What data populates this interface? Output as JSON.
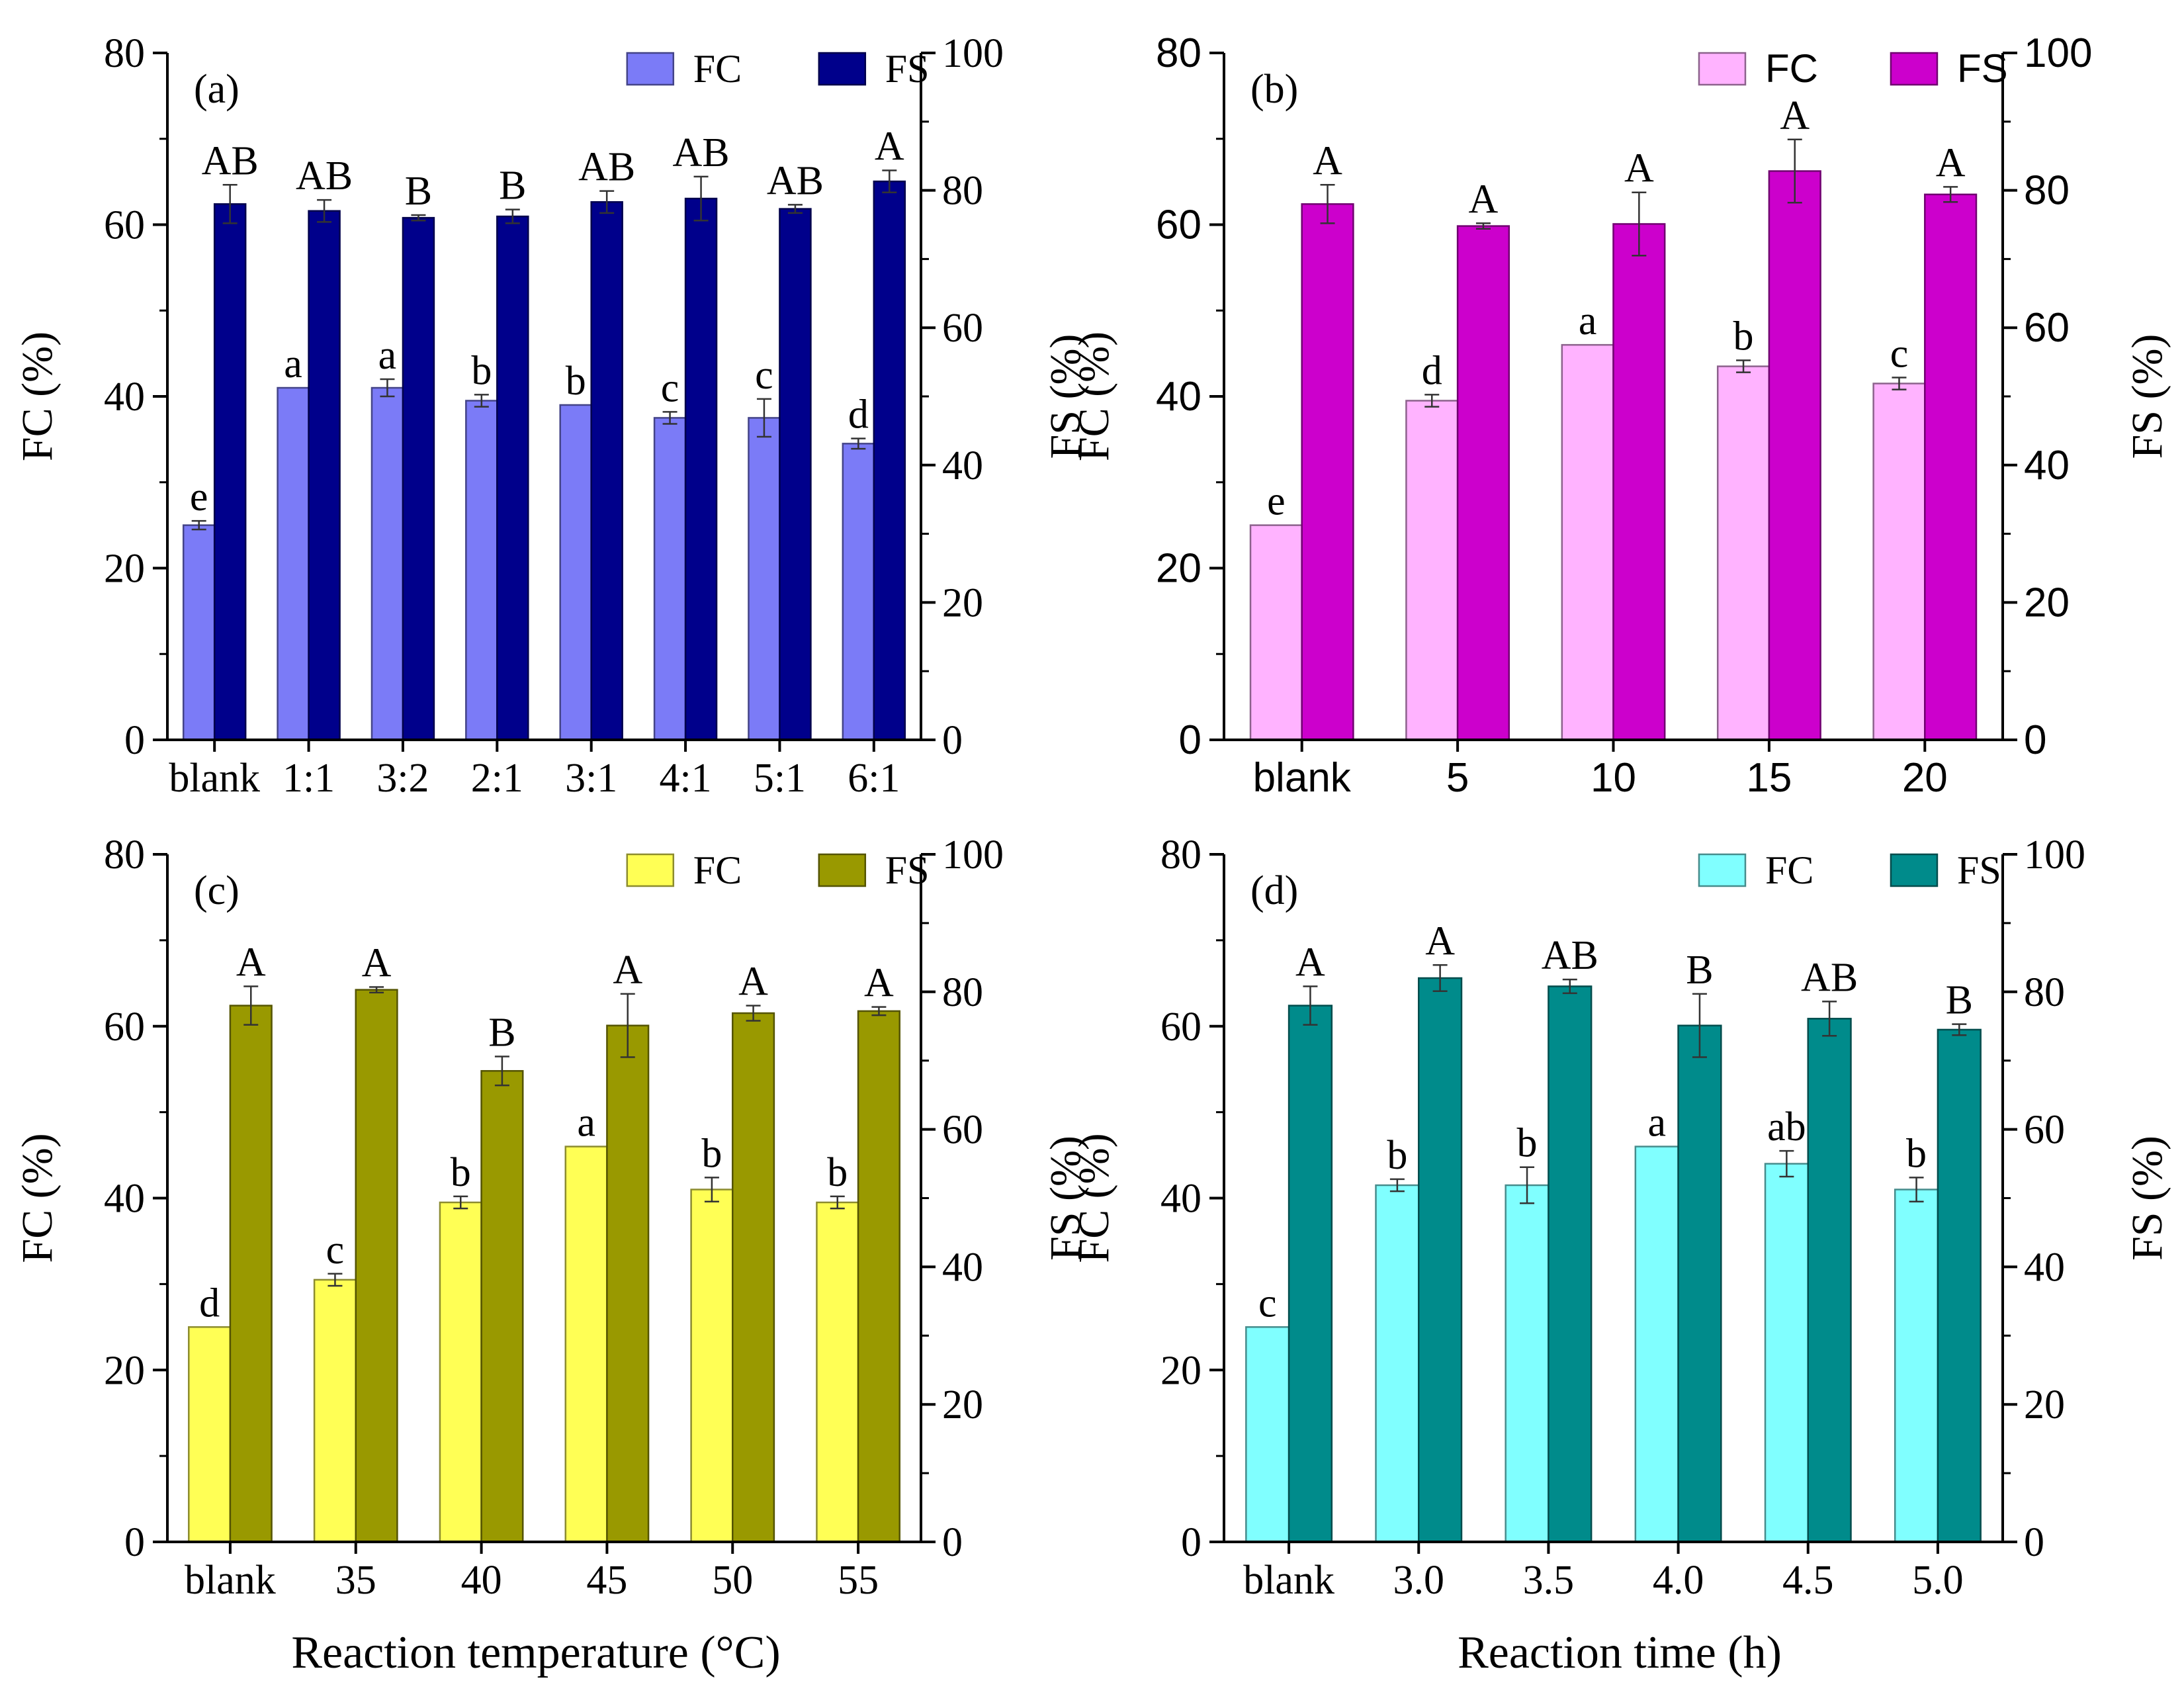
{
  "figure": {
    "shared_xlabels": [
      "Reaction temperature (°C)",
      "Reaction time (h)"
    ]
  },
  "chart_data": [
    {
      "type": "bar",
      "panel_label": "(a)",
      "title": "",
      "xlabel": "",
      "ylabel_left": "FC (%)",
      "ylabel_right": "FS (%)",
      "ylim_left": [
        0,
        80
      ],
      "ylim_right": [
        0,
        100
      ],
      "yticks_left": [
        "0",
        "20",
        "40",
        "60",
        "80"
      ],
      "yticks_right": [
        "0",
        "20",
        "40",
        "60",
        "80",
        "100"
      ],
      "grid": false,
      "legend_position": "top-right",
      "categories": [
        "blank",
        "1:1",
        "3:2",
        "2:1",
        "3:1",
        "4:1",
        "5:1",
        "6:1"
      ],
      "series": [
        {
          "name": "FC",
          "axis": "left",
          "color": "#7B7BF7",
          "values": [
            25.0,
            41.0,
            41.0,
            39.5,
            39.0,
            37.5,
            37.5,
            34.5
          ],
          "errors": [
            0.5,
            0.0,
            1.0,
            0.7,
            0.0,
            0.7,
            2.2,
            0.6
          ],
          "letters": [
            "e",
            "a",
            "a",
            "b",
            "b",
            "c",
            "c",
            "d"
          ]
        },
        {
          "name": "FS",
          "axis": "right",
          "color": "#00008B",
          "values": [
            78.0,
            77.0,
            76.0,
            76.2,
            78.3,
            78.8,
            77.3,
            81.3
          ],
          "errors": [
            2.8,
            1.6,
            0.4,
            1.0,
            1.6,
            3.2,
            0.6,
            1.6
          ],
          "letters": [
            "AB",
            "AB",
            "B",
            "B",
            "AB",
            "AB",
            "AB",
            "A"
          ]
        }
      ]
    },
    {
      "type": "bar",
      "panel_label": "(b)",
      "title": "",
      "xlabel": "",
      "ylabel_left": "FC (%)",
      "ylabel_right": "FS (%)",
      "ylim_left": [
        0,
        80
      ],
      "ylim_right": [
        0,
        100
      ],
      "yticks_left": [
        "0",
        "20",
        "40",
        "60",
        "80"
      ],
      "yticks_right": [
        "0",
        "20",
        "40",
        "60",
        "80",
        "100"
      ],
      "grid": false,
      "legend_position": "top-right",
      "categories": [
        "blank",
        "5",
        "10",
        "15",
        "20"
      ],
      "series": [
        {
          "name": "FC",
          "axis": "left",
          "color": "#FFB3FF",
          "values": [
            25.0,
            39.5,
            46.0,
            43.5,
            41.5
          ],
          "errors": [
            0.0,
            0.7,
            0.0,
            0.7,
            0.7
          ],
          "letters": [
            "e",
            "d",
            "a",
            "b",
            "c"
          ]
        },
        {
          "name": "FS",
          "axis": "right",
          "color": "#CC00CC",
          "values": [
            78.0,
            74.8,
            75.1,
            82.8,
            79.4
          ],
          "errors": [
            2.8,
            0.4,
            4.6,
            4.6,
            1.1
          ],
          "letters": [
            "A",
            "A",
            "A",
            "A",
            "A"
          ]
        }
      ]
    },
    {
      "type": "bar",
      "panel_label": "(c)",
      "title": "",
      "xlabel": "Reaction temperature (°C)",
      "ylabel_left": "FC (%)",
      "ylabel_right": "FS (%)",
      "ylim_left": [
        0,
        80
      ],
      "ylim_right": [
        0,
        100
      ],
      "yticks_left": [
        "0",
        "20",
        "40",
        "60",
        "80"
      ],
      "yticks_right": [
        "0",
        "20",
        "40",
        "60",
        "80",
        "100"
      ],
      "grid": false,
      "legend_position": "top-right",
      "categories": [
        "blank",
        "35",
        "40",
        "45",
        "50",
        "55"
      ],
      "series": [
        {
          "name": "FC",
          "axis": "left",
          "color": "#FFFF55",
          "values": [
            25.0,
            30.5,
            39.5,
            46.0,
            41.0,
            39.5
          ],
          "errors": [
            0.0,
            0.7,
            0.7,
            0.0,
            1.4,
            0.7
          ],
          "letters": [
            "d",
            "c",
            "b",
            "a",
            "b",
            "b"
          ]
        },
        {
          "name": "FS",
          "axis": "right",
          "color": "#999900",
          "values": [
            78.0,
            80.3,
            68.5,
            75.1,
            76.9,
            77.2
          ],
          "errors": [
            2.8,
            0.4,
            2.1,
            4.6,
            1.1,
            0.6
          ],
          "letters": [
            "A",
            "A",
            "B",
            "A",
            "A",
            "A"
          ]
        }
      ]
    },
    {
      "type": "bar",
      "panel_label": "(d)",
      "title": "",
      "xlabel": "Reaction time (h)",
      "ylabel_left": "FC (%)",
      "ylabel_right": "FS (%)",
      "ylim_left": [
        0,
        80
      ],
      "ylim_right": [
        0,
        100
      ],
      "yticks_left": [
        "0",
        "20",
        "40",
        "60",
        "80"
      ],
      "yticks_right": [
        "0",
        "20",
        "40",
        "60",
        "80",
        "100"
      ],
      "grid": false,
      "legend_position": "top-right",
      "categories": [
        "blank",
        "3.0",
        "3.5",
        "4.0",
        "4.5",
        "5.0"
      ],
      "series": [
        {
          "name": "FC",
          "axis": "left",
          "color": "#80FFFF",
          "values": [
            25.0,
            41.5,
            41.5,
            46.0,
            44.0,
            41.0
          ],
          "errors": [
            0.0,
            0.7,
            2.1,
            0.0,
            1.5,
            1.4
          ],
          "letters": [
            "c",
            "b",
            "b",
            "a",
            "ab",
            "b"
          ]
        },
        {
          "name": "FS",
          "axis": "right",
          "color": "#008B8B",
          "values": [
            78.0,
            82.0,
            80.8,
            75.1,
            76.1,
            74.5
          ],
          "errors": [
            2.8,
            1.9,
            1.0,
            4.6,
            2.5,
            0.8
          ],
          "letters": [
            "A",
            "A",
            "AB",
            "B",
            "AB",
            "B"
          ]
        }
      ]
    }
  ]
}
